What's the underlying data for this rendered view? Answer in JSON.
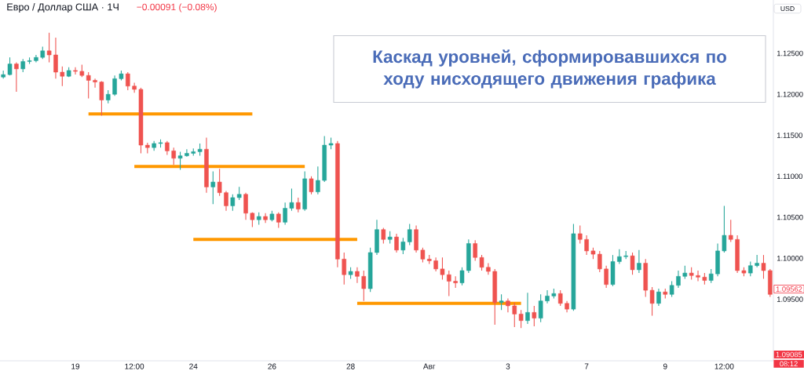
{
  "chart_data": {
    "type": "candlestick",
    "title": "Евро / Доллар США · 1Ч",
    "subtitle": "−0.00091 (−0.08%)",
    "ylabel": "USD",
    "annotations": [
      "Каскад уровней, сформировавшихся по ходу нисходящего движения графика",
      "1.09562",
      "1.09085",
      "08:12"
    ],
    "ylim": [
      1.0875,
      1.1315
    ],
    "yticks": [
      {
        "value": 1.125,
        "label": "1.12500"
      },
      {
        "value": 1.12,
        "label": "1.12000"
      },
      {
        "value": 1.115,
        "label": "1.11500"
      },
      {
        "value": 1.11,
        "label": "1.11000"
      },
      {
        "value": 1.105,
        "label": "1.10500"
      },
      {
        "value": 1.1,
        "label": "1.10000"
      },
      {
        "value": 1.095,
        "label": "1.09500"
      }
    ],
    "categories": [
      null,
      null,
      null,
      null,
      null,
      null,
      null,
      null,
      null,
      null,
      null,
      "19",
      null,
      null,
      null,
      null,
      null,
      null,
      null,
      null,
      "12:00",
      null,
      null,
      null,
      null,
      null,
      null,
      null,
      null,
      "24",
      null,
      null,
      null,
      null,
      null,
      null,
      null,
      null,
      null,
      null,
      null,
      "26",
      null,
      null,
      null,
      null,
      null,
      null,
      null,
      null,
      null,
      null,
      null,
      "28",
      null,
      null,
      null,
      null,
      null,
      null,
      null,
      null,
      null,
      null,
      null,
      "Авг",
      null,
      null,
      null,
      null,
      null,
      null,
      null,
      null,
      null,
      null,
      null,
      "3",
      null,
      null,
      null,
      null,
      null,
      null,
      null,
      null,
      null,
      null,
      null,
      "7",
      null,
      null,
      null,
      null,
      null,
      null,
      null,
      null,
      null,
      null,
      null,
      "9",
      null,
      null,
      null,
      null,
      null,
      null,
      null,
      null,
      "12:00",
      null,
      null,
      null,
      null,
      null,
      null,
      null
    ],
    "ohlc": [
      [
        1.1221,
        1.1229,
        1.1219,
        1.1224
      ],
      [
        1.1224,
        1.1245,
        1.1223,
        1.1237
      ],
      [
        1.1237,
        1.1239,
        1.1203,
        1.1231
      ],
      [
        1.1231,
        1.1243,
        1.1227,
        1.124
      ],
      [
        1.124,
        1.1245,
        1.1237,
        1.1241
      ],
      [
        1.1241,
        1.1248,
        1.1239,
        1.1245
      ],
      [
        1.1245,
        1.1258,
        1.1243,
        1.1253
      ],
      [
        1.1253,
        1.1275,
        1.1239,
        1.1248
      ],
      [
        1.1248,
        1.1269,
        1.1219,
        1.1227
      ],
      [
        1.1227,
        1.1234,
        1.121,
        1.1222
      ],
      [
        1.1222,
        1.1233,
        1.1221,
        1.1229
      ],
      [
        1.1229,
        1.1233,
        1.1224,
        1.1228
      ],
      [
        1.1228,
        1.1236,
        1.1221,
        1.1223
      ],
      [
        1.1223,
        1.1227,
        1.1195,
        1.1217
      ],
      [
        1.1217,
        1.1219,
        1.1208,
        1.1215
      ],
      [
        1.1215,
        1.1216,
        1.1174,
        1.1193
      ],
      [
        1.1193,
        1.1205,
        1.1189,
        1.12
      ],
      [
        1.12,
        1.1223,
        1.1198,
        1.1219
      ],
      [
        1.1219,
        1.1229,
        1.1217,
        1.1225
      ],
      [
        1.1225,
        1.1227,
        1.1205,
        1.121
      ],
      [
        1.121,
        1.1214,
        1.1202,
        1.1206
      ],
      [
        1.1206,
        1.1208,
        1.1128,
        1.1138
      ],
      [
        1.1138,
        1.1141,
        1.1128,
        1.1135
      ],
      [
        1.1135,
        1.1143,
        1.1131,
        1.114
      ],
      [
        1.114,
        1.1145,
        1.1135,
        1.1141
      ],
      [
        1.1141,
        1.1143,
        1.1126,
        1.1131
      ],
      [
        1.1131,
        1.1135,
        1.1114,
        1.1122
      ],
      [
        1.1122,
        1.113,
        1.1108,
        1.1125
      ],
      [
        1.1125,
        1.1133,
        1.1124,
        1.1128
      ],
      [
        1.1128,
        1.1134,
        1.1125,
        1.113
      ],
      [
        1.113,
        1.114,
        1.1125,
        1.1133
      ],
      [
        1.1133,
        1.1147,
        1.108,
        1.1087
      ],
      [
        1.1087,
        1.1106,
        1.1066,
        1.1093
      ],
      [
        1.1093,
        1.1109,
        1.1076,
        1.108
      ],
      [
        1.108,
        1.1082,
        1.1058,
        1.1064
      ],
      [
        1.1064,
        1.1078,
        1.1058,
        1.1074
      ],
      [
        1.1074,
        1.1087,
        1.1071,
        1.1078
      ],
      [
        1.1078,
        1.108,
        1.1047,
        1.1055
      ],
      [
        1.1055,
        1.1056,
        1.1038,
        1.1047
      ],
      [
        1.1047,
        1.1056,
        1.1041,
        1.1051
      ],
      [
        1.1051,
        1.1055,
        1.1043,
        1.1047
      ],
      [
        1.1047,
        1.1058,
        1.1045,
        1.1054
      ],
      [
        1.1054,
        1.1056,
        1.1037,
        1.1044
      ],
      [
        1.1044,
        1.1068,
        1.1041,
        1.1061
      ],
      [
        1.1061,
        1.1085,
        1.1058,
        1.1068
      ],
      [
        1.1068,
        1.1074,
        1.1056,
        1.106
      ],
      [
        1.106,
        1.1106,
        1.1058,
        1.1097
      ],
      [
        1.1097,
        1.11,
        1.1078,
        1.1081
      ],
      [
        1.1081,
        1.1112,
        1.1078,
        1.1095
      ],
      [
        1.1095,
        1.1149,
        1.1093,
        1.1138
      ],
      [
        1.1138,
        1.1147,
        1.1133,
        1.114
      ],
      [
        1.114,
        1.1143,
        1.0989,
        1.0999
      ],
      [
        1.0999,
        1.1007,
        1.0968,
        1.098
      ],
      [
        1.098,
        1.0989,
        1.0975,
        1.0984
      ],
      [
        1.0984,
        1.0989,
        1.097,
        1.0978
      ],
      [
        1.0978,
        1.0985,
        1.0948,
        1.0963
      ],
      [
        1.0963,
        1.1013,
        1.0959,
        1.1007
      ],
      [
        1.1007,
        1.1047,
        1.1004,
        1.1035
      ],
      [
        1.1035,
        1.1037,
        1.1018,
        1.1023
      ],
      [
        1.1023,
        1.1033,
        1.1018,
        1.1026
      ],
      [
        1.1026,
        1.103,
        1.1007,
        1.101
      ],
      [
        1.101,
        1.1025,
        1.1005,
        1.102
      ],
      [
        1.102,
        1.1042,
        1.1016,
        1.1035
      ],
      [
        1.1035,
        1.104,
        1.1007,
        1.101
      ],
      [
        1.101,
        1.1013,
        1.0995,
        1.0999
      ],
      [
        1.0999,
        1.1004,
        1.0993,
        1.0997
      ],
      [
        1.0997,
        1.1001,
        1.0984,
        1.0987
      ],
      [
        1.0987,
        1.1001,
        1.0974,
        1.098
      ],
      [
        1.098,
        1.0985,
        1.0954,
        1.0972
      ],
      [
        1.0972,
        1.0978,
        1.0964,
        1.097
      ],
      [
        1.097,
        1.0989,
        1.0967,
        1.0985
      ],
      [
        1.0985,
        1.1023,
        1.0982,
        1.1018
      ],
      [
        1.1018,
        1.1022,
        1.0997,
        1.1001
      ],
      [
        1.1001,
        1.1004,
        1.0985,
        1.0989
      ],
      [
        1.0989,
        1.0994,
        1.098,
        1.0984
      ],
      [
        1.0984,
        1.0987,
        1.0919,
        1.0946
      ],
      [
        1.0946,
        1.0956,
        1.0937,
        1.0948
      ],
      [
        1.0948,
        1.0951,
        1.0934,
        1.0942
      ],
      [
        1.0942,
        1.0946,
        1.0916,
        1.0932
      ],
      [
        1.0932,
        1.0937,
        1.0915,
        1.0924
      ],
      [
        1.0924,
        1.0958,
        1.092,
        1.0934
      ],
      [
        1.0934,
        1.0942,
        1.0917,
        1.0927
      ],
      [
        1.0927,
        1.0956,
        1.0922,
        1.0948
      ],
      [
        1.0948,
        1.0961,
        1.0945,
        1.0954
      ],
      [
        1.0954,
        1.0963,
        1.0951,
        1.0957
      ],
      [
        1.0957,
        1.0961,
        1.0942,
        1.0945
      ],
      [
        1.0945,
        1.0948,
        1.0934,
        1.0938
      ],
      [
        1.0938,
        1.1042,
        1.0936,
        1.103
      ],
      [
        1.103,
        1.104,
        1.1018,
        1.1023
      ],
      [
        1.1023,
        1.1028,
        1.1004,
        1.1009
      ],
      [
        1.1009,
        1.1013,
        1.0999,
        1.1005
      ],
      [
        1.1005,
        1.1009,
        1.0983,
        1.0987
      ],
      [
        1.0987,
        1.0991,
        1.0964,
        1.0968
      ],
      [
        1.0968,
        1.1004,
        1.0966,
        1.0996
      ],
      [
        1.0996,
        1.1011,
        1.0993,
        1.1002
      ],
      [
        1.1002,
        1.1009,
        1.0999,
        1.1003
      ],
      [
        1.1003,
        1.1007,
        1.098,
        1.0986
      ],
      [
        1.0986,
        1.101,
        1.0982,
        1.0994
      ],
      [
        1.0994,
        1.0999,
        1.0953,
        1.0961
      ],
      [
        1.0961,
        1.0965,
        1.093,
        1.0945
      ],
      [
        1.0945,
        1.0963,
        1.0942,
        1.0959
      ],
      [
        1.0959,
        1.0963,
        1.0951,
        1.0956
      ],
      [
        1.0956,
        1.0972,
        1.0953,
        1.0967
      ],
      [
        1.0967,
        1.0985,
        1.0964,
        1.0978
      ],
      [
        1.0978,
        1.0991,
        1.0975,
        1.0982
      ],
      [
        1.0982,
        1.0989,
        1.0974,
        1.0979
      ],
      [
        1.0979,
        1.0985,
        1.0972,
        1.0977
      ],
      [
        1.0977,
        1.0982,
        1.0968,
        1.0973
      ],
      [
        1.0973,
        1.0987,
        1.097,
        1.0981
      ],
      [
        1.0981,
        1.1018,
        1.0978,
        1.1009
      ],
      [
        1.1009,
        1.1064,
        1.1007,
        1.1028
      ],
      [
        1.1028,
        1.1047,
        1.102,
        1.1023
      ],
      [
        1.1023,
        1.1028,
        1.0982,
        1.0985
      ],
      [
        1.0985,
        1.0989,
        1.0978,
        1.0982
      ],
      [
        1.0982,
        1.0996,
        1.0978,
        1.0991
      ],
      [
        1.0991,
        1.1004,
        1.0989,
        1.0994
      ],
      [
        1.0994,
        1.1004,
        1.0975,
        1.0985
      ],
      [
        1.0985,
        1.0987,
        1.0953,
        1.0956
      ]
    ],
    "colors": [
      "#26a69a",
      "#26a69a",
      "#ef5350",
      "#26a69a",
      "#26a69a",
      "#26a69a",
      "#26a69a",
      "#ef5350",
      "#ef5350",
      "#ef5350",
      "#26a69a",
      "#ef5350",
      "#ef5350",
      "#ef5350",
      "#ef5350",
      "#ef5350",
      "#26a69a",
      "#26a69a",
      "#26a69a",
      "#ef5350",
      "#ef5350",
      "#ef5350",
      "#ef5350",
      "#26a69a",
      "#26a69a",
      "#ef5350",
      "#ef5350",
      "#26a69a",
      "#26a69a",
      "#26a69a",
      "#26a69a",
      "#ef5350",
      "#26a69a",
      "#ef5350",
      "#ef5350",
      "#26a69a",
      "#26a69a",
      "#ef5350",
      "#ef5350",
      "#26a69a",
      "#ef5350",
      "#26a69a",
      "#ef5350",
      "#26a69a",
      "#26a69a",
      "#ef5350",
      "#26a69a",
      "#ef5350",
      "#26a69a",
      "#26a69a",
      "#26a69a",
      "#ef5350",
      "#ef5350",
      "#26a69a",
      "#ef5350",
      "#ef5350",
      "#26a69a",
      "#26a69a",
      "#ef5350",
      "#26a69a",
      "#ef5350",
      "#26a69a",
      "#26a69a",
      "#ef5350",
      "#ef5350",
      "#ef5350",
      "#ef5350",
      "#ef5350",
      "#ef5350",
      "#ef5350",
      "#26a69a",
      "#26a69a",
      "#ef5350",
      "#ef5350",
      "#ef5350",
      "#ef5350",
      "#26a69a",
      "#ef5350",
      "#ef5350",
      "#ef5350",
      "#26a69a",
      "#ef5350",
      "#26a69a",
      "#26a69a",
      "#26a69a",
      "#ef5350",
      "#ef5350",
      "#26a69a",
      "#ef5350",
      "#ef5350",
      "#ef5350",
      "#ef5350",
      "#ef5350",
      "#26a69a",
      "#26a69a",
      "#26a69a",
      "#ef5350",
      "#26a69a",
      "#ef5350",
      "#ef5350",
      "#26a69a",
      "#ef5350",
      "#26a69a",
      "#26a69a",
      "#26a69a",
      "#ef5350",
      "#ef5350",
      "#ef5350",
      "#26a69a",
      "#26a69a",
      "#26a69a",
      "#ef5350",
      "#ef5350",
      "#ef5350",
      "#26a69a",
      "#26a69a",
      "#ef5350",
      "#ef5350"
    ],
    "series": [
      {
        "type": "line",
        "color": "#ff9800",
        "values": [
          null,
          null,
          null,
          null,
          null,
          null,
          null,
          null,
          null,
          null,
          null,
          null,
          null,
          1.1176,
          1.1176,
          1.1176,
          1.1176,
          1.1176,
          1.1176,
          1.1176,
          1.1176,
          1.1176,
          1.1176,
          1.1176,
          1.1176,
          1.1176,
          1.1176,
          1.1176,
          1.1176,
          1.1176,
          1.1176,
          1.1176,
          1.1176,
          1.1176,
          1.1176,
          1.1176,
          1.1176,
          1.1176,
          1.1176,
          null,
          null,
          null,
          null,
          null,
          null,
          null,
          null,
          null,
          null,
          null,
          null,
          null,
          null,
          null,
          null,
          null,
          null,
          null,
          null,
          null,
          null,
          null,
          null,
          null,
          null,
          null,
          null,
          null,
          null,
          null,
          null,
          null,
          null,
          null,
          null,
          null,
          null,
          null,
          null,
          null,
          null,
          null,
          null,
          null,
          null,
          null,
          null,
          null,
          null,
          null,
          null,
          null,
          null,
          null,
          null,
          null,
          null,
          null,
          null,
          null,
          null,
          null,
          null,
          null,
          null,
          null,
          null,
          null,
          null,
          null,
          null,
          null,
          null,
          null,
          null,
          null,
          null,
          null
        ]
      },
      {
        "type": "line",
        "color": "#ff9800",
        "values": [
          null,
          null,
          null,
          null,
          null,
          null,
          null,
          null,
          null,
          null,
          null,
          null,
          null,
          null,
          null,
          null,
          null,
          null,
          null,
          null,
          1.1112,
          1.1112,
          1.1112,
          1.1112,
          1.1112,
          1.1112,
          1.1112,
          1.1112,
          1.1112,
          1.1112,
          1.1112,
          1.1112,
          1.1112,
          1.1112,
          1.1112,
          1.1112,
          1.1112,
          1.1112,
          1.1112,
          1.1112,
          1.1112,
          1.1112,
          1.1112,
          1.1112,
          1.1112,
          1.1112,
          1.1112,
          null,
          null,
          null,
          null,
          null,
          null,
          null,
          null,
          null,
          null,
          null,
          null,
          null,
          null,
          null,
          null,
          null,
          null,
          null,
          null,
          null,
          null,
          null,
          null,
          null,
          null,
          null,
          null,
          null,
          null,
          null,
          null,
          null,
          null,
          null,
          null,
          null,
          null,
          null,
          null,
          null,
          null,
          null,
          null,
          null,
          null,
          null,
          null,
          null,
          null,
          null,
          null,
          null,
          null,
          null,
          null,
          null,
          null,
          null,
          null,
          null,
          null,
          null,
          null,
          null,
          null,
          null,
          null,
          null,
          null,
          null
        ]
      },
      {
        "type": "line",
        "color": "#ff9800",
        "values": [
          null,
          null,
          null,
          null,
          null,
          null,
          null,
          null,
          null,
          null,
          null,
          null,
          null,
          null,
          null,
          null,
          null,
          null,
          null,
          null,
          null,
          null,
          null,
          null,
          null,
          null,
          null,
          null,
          null,
          1.1023,
          1.1023,
          1.1023,
          1.1023,
          1.1023,
          1.1023,
          1.1023,
          1.1023,
          1.1023,
          1.1023,
          1.1023,
          1.1023,
          1.1023,
          1.1023,
          1.1023,
          1.1023,
          1.1023,
          1.1023,
          1.1023,
          1.1023,
          1.1023,
          1.1023,
          1.1023,
          1.1023,
          1.1023,
          1.1023,
          null,
          null,
          null,
          null,
          null,
          null,
          null,
          null,
          null,
          null,
          null,
          null,
          null,
          null,
          null,
          null,
          null,
          null,
          null,
          null,
          null,
          null,
          null,
          null,
          null,
          null,
          null,
          null,
          null,
          null,
          null,
          null,
          null,
          null,
          null,
          null,
          null,
          null,
          null,
          null,
          null,
          null,
          null,
          null,
          null,
          null,
          null,
          null,
          null,
          null,
          null,
          null,
          null,
          null,
          null,
          null,
          null,
          null,
          null,
          null,
          null,
          null,
          null
        ]
      },
      {
        "type": "line",
        "color": "#ff9800",
        "values": [
          null,
          null,
          null,
          null,
          null,
          null,
          null,
          null,
          null,
          null,
          null,
          null,
          null,
          null,
          null,
          null,
          null,
          null,
          null,
          null,
          null,
          null,
          null,
          null,
          null,
          null,
          null,
          null,
          null,
          null,
          null,
          null,
          null,
          null,
          null,
          null,
          null,
          null,
          null,
          null,
          null,
          null,
          null,
          null,
          null,
          null,
          null,
          null,
          null,
          null,
          null,
          null,
          null,
          null,
          1.0945,
          1.0945,
          1.0945,
          1.0945,
          1.0945,
          1.0945,
          1.0945,
          1.0945,
          1.0945,
          1.0945,
          1.0945,
          1.0945,
          1.0945,
          1.0945,
          1.0945,
          1.0945,
          1.0945,
          1.0945,
          1.0945,
          1.0945,
          1.0945,
          1.0945,
          1.0945,
          1.0945,
          1.0945,
          1.0945,
          null,
          null,
          null,
          null,
          null,
          null,
          null,
          null,
          null,
          null,
          null,
          null,
          null,
          null,
          null,
          null,
          null,
          null,
          null,
          null,
          null,
          null,
          null,
          null,
          null,
          null,
          null,
          null,
          null,
          null,
          null,
          null,
          null,
          null,
          null,
          null,
          null,
          null
        ]
      }
    ]
  }
}
